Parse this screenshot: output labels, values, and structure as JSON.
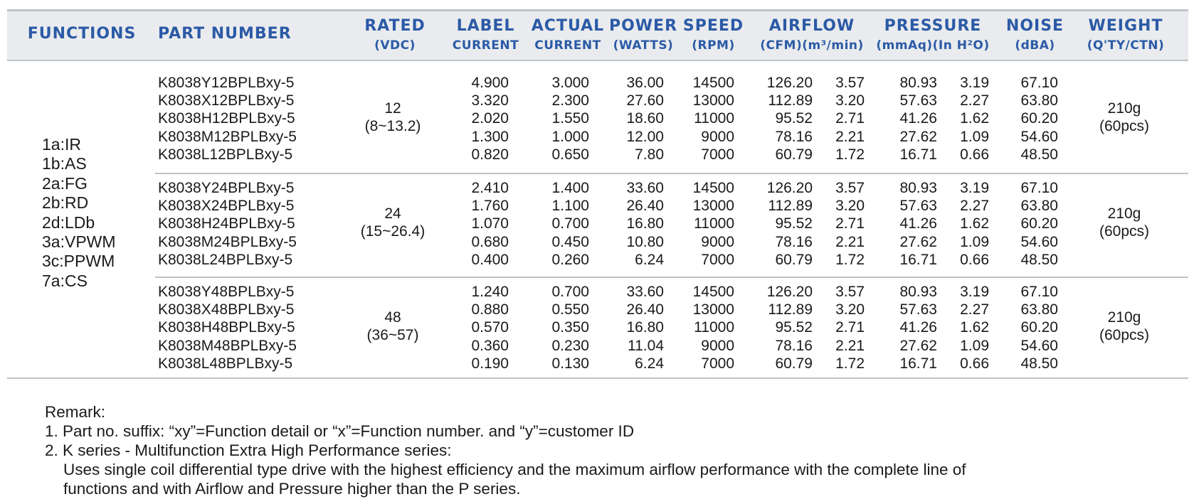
{
  "headers": {
    "functions": "FUNCTIONS",
    "part_number": "PART NUMBER",
    "rated": [
      "RATED",
      "(VDC)"
    ],
    "label_current": [
      "LABEL",
      "CURRENT"
    ],
    "actual_current": [
      "ACTUAL",
      "CURRENT"
    ],
    "power": [
      "POWER",
      "(WATTS)"
    ],
    "speed": [
      "SPEED",
      "(RPM)"
    ],
    "airflow": [
      "AIRFLOW",
      "(CFM)(m³/min)"
    ],
    "pressure": [
      "PRESSURE",
      "(mmAq)(In H²O)"
    ],
    "noise": [
      "NOISE",
      "(dBA)"
    ],
    "weight": [
      "WEIGHT",
      "(Q'TY/CTN)"
    ]
  },
  "functions": [
    "1a:IR",
    "1b:AS",
    "2a:FG",
    "2b:RD",
    "2d:LDb",
    "3a:VPWM",
    "3c:PPWM",
    "7a:CS"
  ],
  "groups": [
    {
      "rated": [
        "12",
        "(8~13.2)"
      ],
      "weight": [
        "210g",
        "(60pcs)"
      ],
      "rows": [
        [
          "K8038Y12BPLBxy-5",
          "4.900",
          "3.000",
          "36.00",
          "14500",
          "126.20",
          "3.57",
          "80.93",
          "3.19",
          "67.10"
        ],
        [
          "K8038X12BPLBxy-5",
          "3.320",
          "2.300",
          "27.60",
          "13000",
          "112.89",
          "3.20",
          "57.63",
          "2.27",
          "63.80"
        ],
        [
          "K8038H12BPLBxy-5",
          "2.020",
          "1.550",
          "18.60",
          "11000",
          "95.52",
          "2.71",
          "41.26",
          "1.62",
          "60.20"
        ],
        [
          "K8038M12BPLBxy-5",
          "1.300",
          "1.000",
          "12.00",
          "9000",
          "78.16",
          "2.21",
          "27.62",
          "1.09",
          "54.60"
        ],
        [
          "K8038L12BPLBxy-5",
          "0.820",
          "0.650",
          "7.80",
          "7000",
          "60.79",
          "1.72",
          "16.71",
          "0.66",
          "48.50"
        ]
      ]
    },
    {
      "rated": [
        "24",
        "(15~26.4)"
      ],
      "weight": [
        "210g",
        "(60pcs)"
      ],
      "rows": [
        [
          "K8038Y24BPLBxy-5",
          "2.410",
          "1.400",
          "33.60",
          "14500",
          "126.20",
          "3.57",
          "80.93",
          "3.19",
          "67.10"
        ],
        [
          "K8038X24BPLBxy-5",
          "1.760",
          "1.100",
          "26.40",
          "13000",
          "112.89",
          "3.20",
          "57.63",
          "2.27",
          "63.80"
        ],
        [
          "K8038H24BPLBxy-5",
          "1.070",
          "0.700",
          "16.80",
          "11000",
          "95.52",
          "2.71",
          "41.26",
          "1.62",
          "60.20"
        ],
        [
          "K8038M24BPLBxy-5",
          "0.680",
          "0.450",
          "10.80",
          "9000",
          "78.16",
          "2.21",
          "27.62",
          "1.09",
          "54.60"
        ],
        [
          "K8038L24BPLBxy-5",
          "0.400",
          "0.260",
          "6.24",
          "7000",
          "60.79",
          "1.72",
          "16.71",
          "0.66",
          "48.50"
        ]
      ]
    },
    {
      "rated": [
        "48",
        "(36~57)"
      ],
      "weight": [
        "210g",
        "(60pcs)"
      ],
      "rows": [
        [
          "K8038Y48BPLBxy-5",
          "1.240",
          "0.700",
          "33.60",
          "14500",
          "126.20",
          "3.57",
          "80.93",
          "3.19",
          "67.10"
        ],
        [
          "K8038X48BPLBxy-5",
          "0.880",
          "0.550",
          "26.40",
          "13000",
          "112.89",
          "3.20",
          "57.63",
          "2.27",
          "63.80"
        ],
        [
          "K8038H48BPLBxy-5",
          "0.570",
          "0.350",
          "16.80",
          "11000",
          "95.52",
          "2.71",
          "41.26",
          "1.62",
          "60.20"
        ],
        [
          "K8038M48BPLBxy-5",
          "0.360",
          "0.230",
          "11.04",
          "9000",
          "78.16",
          "2.21",
          "27.62",
          "1.09",
          "54.60"
        ],
        [
          "K8038L48BPLBxy-5",
          "0.190",
          "0.130",
          "6.24",
          "7000",
          "60.79",
          "1.72",
          "16.71",
          "0.66",
          "48.50"
        ]
      ]
    }
  ],
  "remarks": {
    "title": "Remark:",
    "line1": "1. Part no. suffix: “xy”=Function detail or “x”=Function number. and “y”=customer ID",
    "line2": "2. K series - Multifunction Extra High Performance series:",
    "line3": "Uses single coil differential type drive with the highest efficiency and the maximum airflow performance with the complete line of",
    "line4": "functions and with Airflow and Pressure higher than the P series."
  },
  "colors": {
    "header_text": "#2b5aa6",
    "header_band": "#e9ebee",
    "rule": "#bfc3c8"
  }
}
